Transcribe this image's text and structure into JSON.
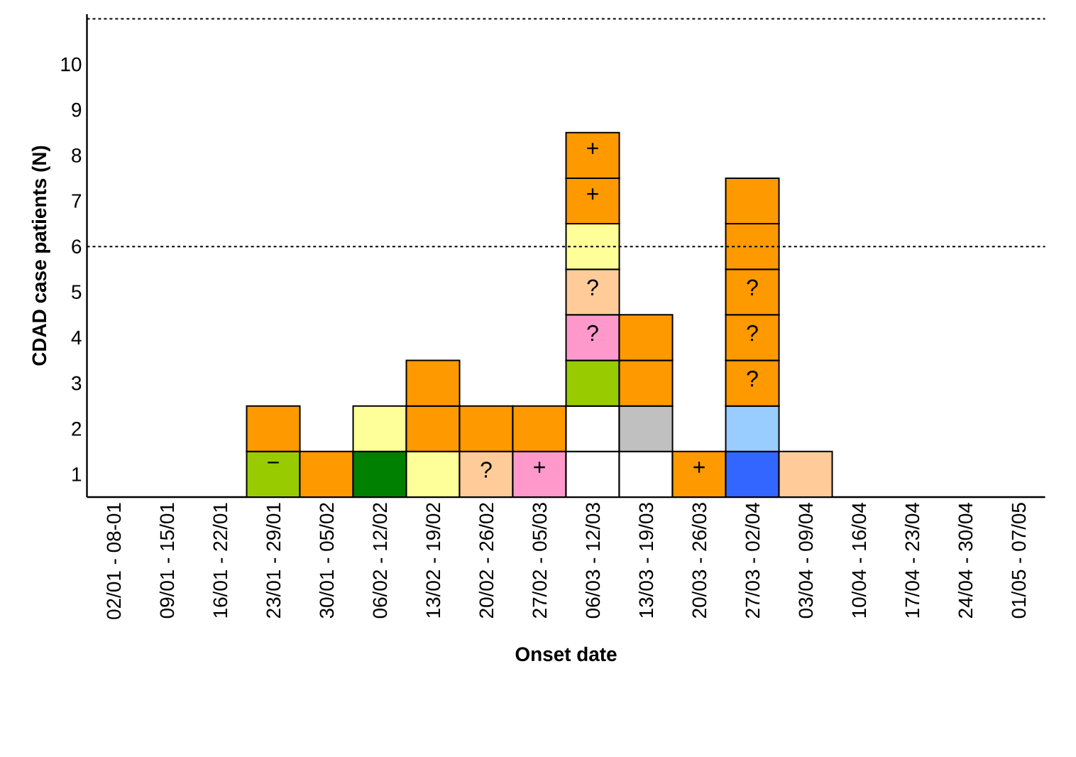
{
  "chart_data": {
    "type": "bar",
    "stacked": true,
    "xlabel": "Onset date",
    "ylabel": "CDAD case patients (N)",
    "categories": [
      "02/01 - 08-01",
      "09/01 - 15/01",
      "16/01 - 22/01",
      "23/01 - 29/01",
      "30/01 - 05/02",
      "06/02 - 12/02",
      "13/02 - 19/02",
      "20/02 - 26/02",
      "27/02 - 05/03",
      "06/03 - 12/03",
      "13/03 - 19/03",
      "20/03 - 26/03",
      "27/03 - 02/04",
      "03/04 - 09/04",
      "10/04 - 16/04",
      "17/04 - 23/04",
      "24/04 - 30/04",
      "01/05 - 07/05"
    ],
    "series": [
      {
        "values": [
          null,
          null,
          null,
          1,
          1,
          1,
          1,
          1,
          1,
          1,
          1,
          1,
          1,
          1,
          null,
          null,
          null,
          null
        ],
        "colors": [
          null,
          null,
          null,
          "#99cc00",
          "#ff9900",
          "#008000",
          "#ffff99",
          "#ffcc99",
          "#ff99cc",
          "#ffffff",
          "#ffffff",
          "#ff9900",
          "#3366ff",
          "#ffcc99",
          null,
          null,
          null,
          null
        ]
      },
      {
        "values": [
          null,
          null,
          null,
          1,
          null,
          1,
          1,
          1,
          1,
          1,
          1,
          null,
          1,
          null,
          null,
          null,
          null,
          null
        ],
        "colors": [
          null,
          null,
          null,
          "#ff9900",
          null,
          "#ffff99",
          "#ff9900",
          "#ff9900",
          "#ff9900",
          "#ffffff",
          "#c0c0c0",
          null,
          "#99ccff",
          null,
          null,
          null,
          null,
          null
        ]
      },
      {
        "values": [
          null,
          null,
          null,
          null,
          null,
          null,
          1,
          null,
          null,
          1,
          1,
          null,
          1,
          null,
          null,
          null,
          null,
          null
        ],
        "colors": [
          null,
          null,
          null,
          null,
          null,
          null,
          "#ff9900",
          null,
          null,
          "#99cc00",
          "#ff9900",
          null,
          "#ff9900",
          null,
          null,
          null,
          null,
          null
        ]
      },
      {
        "values": [
          null,
          null,
          null,
          null,
          null,
          null,
          null,
          null,
          null,
          1,
          1,
          null,
          1,
          null,
          null,
          null,
          null,
          null
        ],
        "colors": [
          null,
          null,
          null,
          null,
          null,
          null,
          null,
          null,
          null,
          "#ff99cc",
          "#ff9900",
          null,
          "#ff9900",
          null,
          null,
          null,
          null,
          null
        ]
      },
      {
        "values": [
          null,
          null,
          null,
          null,
          null,
          null,
          null,
          null,
          null,
          1,
          null,
          null,
          1,
          null,
          null,
          null,
          null,
          null
        ],
        "colors": [
          null,
          null,
          null,
          null,
          null,
          null,
          null,
          null,
          null,
          "#ffcc99",
          null,
          null,
          "#ff9900",
          null,
          null,
          null,
          null,
          null
        ]
      },
      {
        "values": [
          null,
          null,
          null,
          null,
          null,
          null,
          null,
          null,
          null,
          1,
          null,
          null,
          1,
          null,
          null,
          null,
          null,
          null
        ],
        "colors": [
          null,
          null,
          null,
          null,
          null,
          null,
          null,
          null,
          null,
          "#ffff99",
          null,
          null,
          "#ff9900",
          null,
          null,
          null,
          null,
          null
        ]
      },
      {
        "values": [
          null,
          null,
          null,
          null,
          null,
          null,
          null,
          null,
          null,
          1,
          null,
          null,
          1,
          null,
          null,
          null,
          null,
          null
        ],
        "colors": [
          null,
          null,
          null,
          null,
          null,
          null,
          null,
          null,
          null,
          "#ff9900",
          null,
          null,
          "#ff9900",
          null,
          null,
          null,
          null,
          null
        ]
      },
      {
        "values": [
          null,
          null,
          null,
          null,
          null,
          null,
          null,
          null,
          null,
          1,
          null,
          null,
          null,
          null,
          null,
          null,
          null,
          null
        ],
        "colors": [
          null,
          null,
          null,
          null,
          null,
          null,
          null,
          null,
          null,
          "#ff9900",
          null,
          null,
          null,
          null,
          null,
          null,
          null,
          null
        ]
      }
    ],
    "ylim": [
      0,
      10.6
    ],
    "yticks": [
      {
        "value": 0.5,
        "label": "1"
      },
      {
        "value": 1.5,
        "label": "2"
      },
      {
        "value": 2.5,
        "label": "3"
      },
      {
        "value": 3.5,
        "label": "4"
      },
      {
        "value": 4.5,
        "label": "5"
      },
      {
        "value": 5.5,
        "label": "6"
      },
      {
        "value": 6.5,
        "label": "7"
      },
      {
        "value": 7.5,
        "label": "8"
      },
      {
        "value": 8.5,
        "label": "9"
      },
      {
        "value": 9.5,
        "label": "10"
      }
    ],
    "ref_lines": [
      {
        "axis": "y",
        "value": 5.5,
        "color": "#000000",
        "line_style": "dotted"
      },
      {
        "axis": "y",
        "value": 10.5,
        "color": "#000000",
        "line_style": "dotted"
      }
    ],
    "annotations": [
      {
        "text": "−",
        "x": "23/01 - 29/01",
        "y": 1
      },
      {
        "text": "?",
        "x": "20/02 - 26/02",
        "y": 1
      },
      {
        "text": "+",
        "x": "27/02 - 05/03",
        "y": 1
      },
      {
        "text": "?",
        "x": "06/03 - 12/03",
        "y": 4
      },
      {
        "text": "?",
        "x": "06/03 - 12/03",
        "y": 5
      },
      {
        "text": "+",
        "x": "06/03 - 12/03",
        "y": 7
      },
      {
        "text": "+",
        "x": "06/03 - 12/03",
        "y": 8
      },
      {
        "text": "+",
        "x": "20/03 - 26/03",
        "y": 1
      },
      {
        "text": "?",
        "x": "27/03 - 02/04",
        "y": 3
      },
      {
        "text": "?",
        "x": "27/03 - 02/04",
        "y": 4
      },
      {
        "text": "?",
        "x": "27/03 - 02/04",
        "y": 5
      }
    ]
  }
}
